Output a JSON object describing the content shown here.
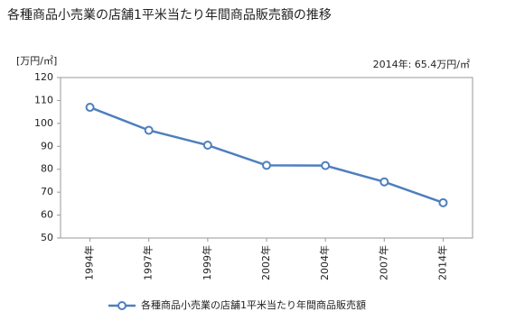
{
  "chart_data": {
    "type": "line",
    "title": "各種商品小売業の店舗1平米当たり年間商品販売額の推移",
    "y_label": "[万円/㎡]",
    "annotation": "2014年: 65.4万円/㎡",
    "categories": [
      "1994年",
      "1997年",
      "1999年",
      "2002年",
      "2004年",
      "2007年",
      "2014年"
    ],
    "series": [
      {
        "name": "各種商品小売業の店舗1平米当たり年間商品販売額",
        "color": "#4f7fbd",
        "values": [
          107,
          97,
          90.5,
          81.7,
          81.6,
          74.5,
          65.4
        ]
      }
    ],
    "ylim": [
      50,
      120
    ],
    "yticks": [
      50,
      60,
      70,
      80,
      90,
      100,
      110,
      120
    ],
    "grid": false,
    "legend": "bottom"
  }
}
